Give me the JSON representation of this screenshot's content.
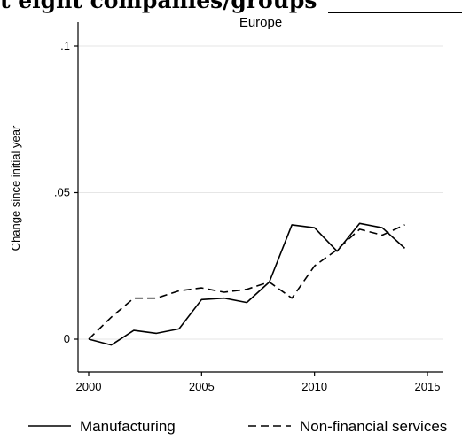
{
  "header": {
    "cropped_title": "t eight companies/groups"
  },
  "chart_data": {
    "type": "line",
    "title": "Europe",
    "xlabel": "",
    "ylabel": "Change since initial year",
    "xlim": [
      1999.5,
      2015.5
    ],
    "ylim": [
      -0.015,
      0.1
    ],
    "x_ticks": [
      2000,
      2005,
      2010,
      2015
    ],
    "x_tick_labels": [
      "2000",
      "2005",
      "2010",
      "2015"
    ],
    "y_ticks": [
      0,
      0.05,
      0.1
    ],
    "y_tick_labels": [
      "0",
      ".05",
      ".1"
    ],
    "grid": "horizontal",
    "legend_position": "bottom",
    "series": [
      {
        "name": "Manufacturing",
        "style": "solid",
        "color": "#000000",
        "x": [
          2000,
          2001,
          2002,
          2003,
          2004,
          2005,
          2006,
          2007,
          2008,
          2009,
          2010,
          2011,
          2012,
          2013,
          2014
        ],
        "y": [
          0,
          -0.002,
          0.003,
          0.002,
          0.0035,
          0.0135,
          0.014,
          0.0125,
          0.0195,
          0.039,
          0.038,
          0.03,
          0.0395,
          0.038,
          0.031
        ]
      },
      {
        "name": "Non-financial services",
        "style": "dashed",
        "color": "#000000",
        "x": [
          2000,
          2001,
          2002,
          2003,
          2004,
          2005,
          2006,
          2007,
          2008,
          2009,
          2010,
          2011,
          2012,
          2013,
          2014
        ],
        "y": [
          0,
          0.0075,
          0.014,
          0.014,
          0.0165,
          0.0175,
          0.016,
          0.017,
          0.0195,
          0.014,
          0.025,
          0.0305,
          0.0375,
          0.0355,
          0.039
        ]
      }
    ]
  }
}
